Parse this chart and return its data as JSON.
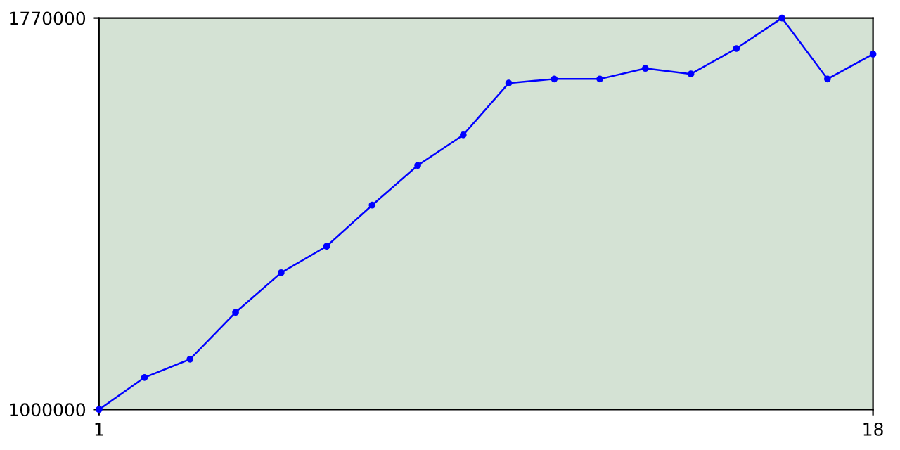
{
  "chart_data": {
    "type": "line",
    "x": [
      1,
      2,
      3,
      4,
      5,
      6,
      7,
      8,
      9,
      10,
      11,
      12,
      13,
      14,
      15,
      16,
      17,
      18
    ],
    "series": [
      {
        "color": "#0000ff",
        "values": [
          1000000,
          1063000,
          1099000,
          1191000,
          1269000,
          1321000,
          1402000,
          1480000,
          1540000,
          1642000,
          1650000,
          1650000,
          1671000,
          1660000,
          1710000,
          1770000,
          1650000,
          1699000
        ]
      }
    ],
    "xlim": [
      1,
      18
    ],
    "xticks": [
      1,
      18
    ],
    "ylim": [
      1000000,
      1770000
    ],
    "yticks": [
      1000000,
      1770000
    ],
    "grid": false,
    "marker": "circle",
    "line_style": "solid"
  }
}
